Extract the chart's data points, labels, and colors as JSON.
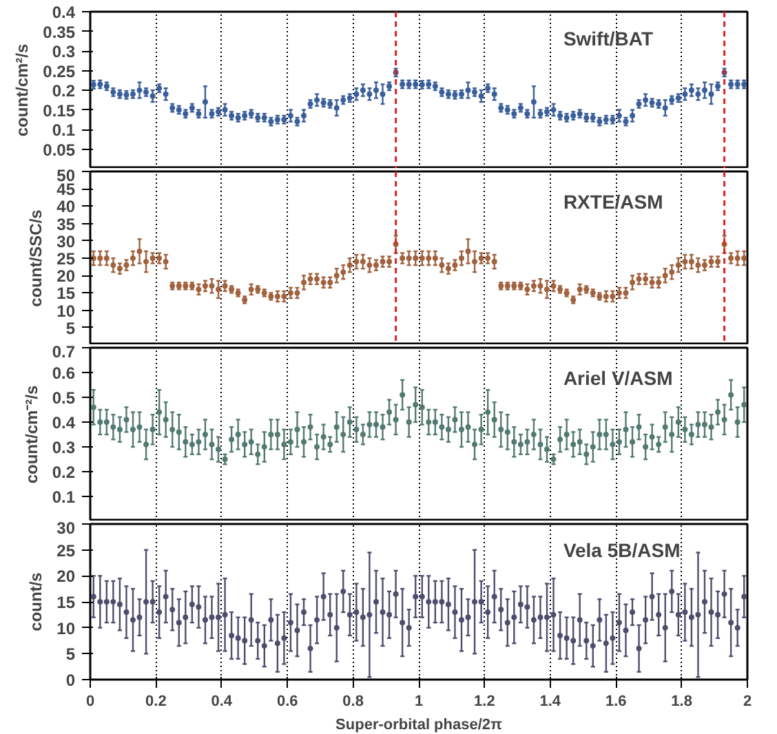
{
  "chart_data": [
    {
      "type": "scatter",
      "title": "Swift/BAT",
      "ylabel": "count/cm²/s",
      "color": "#3a5f9a",
      "marker": "circle",
      "grid": "x",
      "tick_labels": "y",
      "xlim": [
        0,
        2
      ],
      "ylim": [
        0,
        0.4
      ],
      "yticks": [
        0.05,
        0.1,
        0.15,
        0.2,
        0.25,
        0.3,
        0.35,
        0.4
      ],
      "ref_lines": [
        {
          "axis": "x",
          "value": 0.93,
          "color": "#e02020",
          "line_style": "dashed"
        },
        {
          "axis": "x",
          "value": 1.93,
          "color": "#e02020",
          "line_style": "dashed"
        }
      ],
      "x": [
        0.01,
        0.03,
        0.05,
        0.07,
        0.09,
        0.11,
        0.13,
        0.15,
        0.17,
        0.19,
        0.21,
        0.23,
        0.25,
        0.27,
        0.29,
        0.31,
        0.33,
        0.35,
        0.37,
        0.39,
        0.41,
        0.43,
        0.45,
        0.47,
        0.49,
        0.51,
        0.53,
        0.55,
        0.57,
        0.59,
        0.61,
        0.63,
        0.65,
        0.67,
        0.69,
        0.71,
        0.73,
        0.75,
        0.77,
        0.79,
        0.81,
        0.83,
        0.85,
        0.87,
        0.89,
        0.91,
        0.93,
        0.95,
        0.97,
        0.99,
        1.01,
        1.03,
        1.05,
        1.07,
        1.09,
        1.11,
        1.13,
        1.15,
        1.17,
        1.19,
        1.21,
        1.23,
        1.25,
        1.27,
        1.29,
        1.31,
        1.33,
        1.35,
        1.37,
        1.39,
        1.41,
        1.43,
        1.45,
        1.47,
        1.49,
        1.51,
        1.53,
        1.55,
        1.57,
        1.59,
        1.61,
        1.63,
        1.65,
        1.67,
        1.69,
        1.71,
        1.73,
        1.75,
        1.77,
        1.79,
        1.81,
        1.83,
        1.85,
        1.87,
        1.89,
        1.91,
        1.93,
        1.95,
        1.97,
        1.99
      ],
      "values": [
        0.214,
        0.215,
        0.21,
        0.195,
        0.19,
        0.188,
        0.19,
        0.2,
        0.195,
        0.185,
        0.205,
        0.19,
        0.155,
        0.15,
        0.14,
        0.155,
        0.14,
        0.17,
        0.14,
        0.145,
        0.15,
        0.135,
        0.13,
        0.135,
        0.14,
        0.13,
        0.13,
        0.12,
        0.125,
        0.125,
        0.135,
        0.12,
        0.135,
        0.165,
        0.175,
        0.168,
        0.165,
        0.155,
        0.175,
        0.18,
        0.19,
        0.2,
        0.19,
        0.2,
        0.19,
        0.21,
        0.245,
        0.215,
        0.215,
        0.215,
        0.214,
        0.215,
        0.21,
        0.195,
        0.19,
        0.188,
        0.19,
        0.2,
        0.195,
        0.185,
        0.205,
        0.19,
        0.155,
        0.15,
        0.14,
        0.155,
        0.14,
        0.17,
        0.14,
        0.145,
        0.15,
        0.135,
        0.13,
        0.135,
        0.14,
        0.13,
        0.13,
        0.12,
        0.125,
        0.125,
        0.135,
        0.12,
        0.135,
        0.165,
        0.175,
        0.168,
        0.165,
        0.155,
        0.175,
        0.18,
        0.19,
        0.2,
        0.19,
        0.2,
        0.19,
        0.21,
        0.245,
        0.215,
        0.215,
        0.215
      ],
      "errors": [
        0.01,
        0.01,
        0.01,
        0.01,
        0.01,
        0.01,
        0.01,
        0.02,
        0.01,
        0.015,
        0.01,
        0.015,
        0.01,
        0.01,
        0.01,
        0.01,
        0.01,
        0.04,
        0.01,
        0.01,
        0.015,
        0.01,
        0.01,
        0.01,
        0.01,
        0.01,
        0.01,
        0.01,
        0.01,
        0.01,
        0.015,
        0.01,
        0.015,
        0.01,
        0.015,
        0.01,
        0.01,
        0.02,
        0.01,
        0.01,
        0.015,
        0.015,
        0.015,
        0.02,
        0.025,
        0.01,
        0.01,
        0.01,
        0.01,
        0.01,
        0.01,
        0.01,
        0.01,
        0.01,
        0.01,
        0.01,
        0.01,
        0.02,
        0.01,
        0.015,
        0.01,
        0.015,
        0.01,
        0.01,
        0.01,
        0.01,
        0.01,
        0.04,
        0.01,
        0.01,
        0.015,
        0.01,
        0.01,
        0.01,
        0.01,
        0.01,
        0.01,
        0.01,
        0.01,
        0.01,
        0.015,
        0.01,
        0.015,
        0.01,
        0.015,
        0.01,
        0.01,
        0.02,
        0.01,
        0.01,
        0.015,
        0.015,
        0.015,
        0.02,
        0.025,
        0.01,
        0.01,
        0.01,
        0.01,
        0.01
      ]
    },
    {
      "type": "scatter",
      "title": "RXTE/ASM",
      "ylabel": "count/SSC/s",
      "color": "#a0623f",
      "marker": "circle",
      "grid": "x",
      "tick_labels": "y",
      "xlim": [
        0,
        2
      ],
      "ylim": [
        0,
        50
      ],
      "yticks": [
        5,
        10,
        15,
        20,
        25,
        30,
        35,
        40,
        45,
        50
      ],
      "ref_lines": [
        {
          "axis": "x",
          "value": 0.93,
          "color": "#e02020",
          "line_style": "dashed"
        },
        {
          "axis": "x",
          "value": 1.93,
          "color": "#e02020",
          "line_style": "dashed"
        }
      ],
      "x": [
        0.01,
        0.03,
        0.05,
        0.07,
        0.09,
        0.11,
        0.13,
        0.15,
        0.17,
        0.19,
        0.21,
        0.23,
        0.25,
        0.27,
        0.29,
        0.31,
        0.33,
        0.35,
        0.37,
        0.39,
        0.41,
        0.43,
        0.45,
        0.47,
        0.49,
        0.51,
        0.53,
        0.55,
        0.57,
        0.59,
        0.61,
        0.63,
        0.65,
        0.67,
        0.69,
        0.71,
        0.73,
        0.75,
        0.77,
        0.79,
        0.81,
        0.83,
        0.85,
        0.87,
        0.89,
        0.91,
        0.93,
        0.95,
        0.97,
        0.99,
        1.01,
        1.03,
        1.05,
        1.07,
        1.09,
        1.11,
        1.13,
        1.15,
        1.17,
        1.19,
        1.21,
        1.23,
        1.25,
        1.27,
        1.29,
        1.31,
        1.33,
        1.35,
        1.37,
        1.39,
        1.41,
        1.43,
        1.45,
        1.47,
        1.49,
        1.51,
        1.53,
        1.55,
        1.57,
        1.59,
        1.61,
        1.63,
        1.65,
        1.67,
        1.69,
        1.71,
        1.73,
        1.75,
        1.77,
        1.79,
        1.81,
        1.83,
        1.85,
        1.87,
        1.89,
        1.91,
        1.93,
        1.95,
        1.97,
        1.99
      ],
      "values": [
        25,
        25,
        25,
        23,
        22,
        23,
        25,
        27,
        24,
        25,
        25,
        24,
        17,
        17,
        17,
        17,
        16,
        17,
        17,
        16,
        17,
        16,
        15,
        13,
        16,
        16,
        15,
        14,
        14,
        14,
        15,
        15,
        18,
        19,
        19,
        18,
        18,
        20,
        21,
        23,
        24,
        24,
        23,
        23,
        24,
        24,
        29,
        25,
        25,
        25,
        25,
        25,
        25,
        23,
        22,
        23,
        25,
        27,
        24,
        25,
        25,
        24,
        17,
        17,
        17,
        17,
        16,
        17,
        17,
        16,
        17,
        16,
        15,
        13,
        16,
        16,
        15,
        14,
        14,
        14,
        15,
        15,
        18,
        19,
        19,
        18,
        18,
        20,
        21,
        23,
        24,
        24,
        23,
        23,
        24,
        24,
        29,
        25,
        25,
        25
      ],
      "errors": [
        2,
        2,
        2,
        2,
        1.5,
        1.5,
        2,
        3.5,
        3,
        1.5,
        1.5,
        2,
        1,
        1,
        1,
        1,
        1.5,
        1.5,
        2,
        2.5,
        1.5,
        1,
        1,
        1,
        1.5,
        1,
        1,
        1,
        1.5,
        1.5,
        1.5,
        1.5,
        2,
        1.5,
        1.5,
        1.5,
        1.5,
        2,
        2,
        2,
        2,
        2,
        2,
        1.5,
        1.5,
        1.5,
        2.5,
        1.5,
        2,
        2,
        2,
        2,
        2,
        2,
        1.5,
        1.5,
        2,
        3.5,
        3,
        1.5,
        1.5,
        2,
        1,
        1,
        1,
        1,
        1.5,
        1.5,
        2,
        2.5,
        1.5,
        1,
        1,
        1,
        1.5,
        1,
        1,
        1,
        1.5,
        1.5,
        1.5,
        1.5,
        2,
        1.5,
        1.5,
        1.5,
        1.5,
        2,
        2,
        2,
        2,
        2,
        2,
        1.5,
        1.5,
        1.5,
        2.5,
        1.5,
        2,
        2
      ]
    },
    {
      "type": "scatter",
      "title": "Ariel V/ASM",
      "ylabel": "count/cm⁻²/s",
      "color": "#527a70",
      "marker": "circle",
      "grid": "x",
      "tick_labels": "y",
      "xlim": [
        0,
        2
      ],
      "ylim": [
        0,
        0.7
      ],
      "yticks": [
        0.1,
        0.2,
        0.3,
        0.4,
        0.5,
        0.6,
        0.7
      ],
      "x": [
        0.01,
        0.03,
        0.05,
        0.07,
        0.09,
        0.11,
        0.13,
        0.15,
        0.17,
        0.19,
        0.21,
        0.23,
        0.25,
        0.27,
        0.29,
        0.31,
        0.33,
        0.35,
        0.37,
        0.39,
        0.41,
        0.43,
        0.45,
        0.47,
        0.49,
        0.51,
        0.53,
        0.55,
        0.57,
        0.59,
        0.61,
        0.63,
        0.65,
        0.67,
        0.69,
        0.71,
        0.73,
        0.75,
        0.77,
        0.79,
        0.81,
        0.83,
        0.85,
        0.87,
        0.89,
        0.91,
        0.93,
        0.95,
        0.97,
        0.99,
        1.01,
        1.03,
        1.05,
        1.07,
        1.09,
        1.11,
        1.13,
        1.15,
        1.17,
        1.19,
        1.21,
        1.23,
        1.25,
        1.27,
        1.29,
        1.31,
        1.33,
        1.35,
        1.37,
        1.39,
        1.41,
        1.43,
        1.45,
        1.47,
        1.49,
        1.51,
        1.53,
        1.55,
        1.57,
        1.59,
        1.61,
        1.63,
        1.65,
        1.67,
        1.69,
        1.71,
        1.73,
        1.75,
        1.77,
        1.79,
        1.81,
        1.83,
        1.85,
        1.87,
        1.89,
        1.91,
        1.93,
        1.95,
        1.97,
        1.99
      ],
      "values": [
        0.46,
        0.4,
        0.4,
        0.38,
        0.37,
        0.41,
        0.37,
        0.38,
        0.31,
        0.37,
        0.44,
        0.41,
        0.37,
        0.36,
        0.32,
        0.31,
        0.32,
        0.35,
        0.31,
        0.29,
        0.25,
        0.33,
        0.35,
        0.31,
        0.32,
        0.27,
        0.3,
        0.35,
        0.35,
        0.31,
        0.32,
        0.37,
        0.32,
        0.38,
        0.3,
        0.34,
        0.31,
        0.38,
        0.35,
        0.4,
        0.37,
        0.35,
        0.39,
        0.39,
        0.38,
        0.44,
        0.41,
        0.51,
        0.4,
        0.47,
        0.46,
        0.4,
        0.4,
        0.38,
        0.37,
        0.41,
        0.37,
        0.38,
        0.31,
        0.37,
        0.44,
        0.41,
        0.37,
        0.36,
        0.32,
        0.31,
        0.32,
        0.35,
        0.31,
        0.29,
        0.25,
        0.33,
        0.35,
        0.31,
        0.32,
        0.27,
        0.3,
        0.35,
        0.35,
        0.31,
        0.32,
        0.37,
        0.32,
        0.38,
        0.3,
        0.34,
        0.31,
        0.38,
        0.35,
        0.4,
        0.37,
        0.35,
        0.39,
        0.39,
        0.38,
        0.44,
        0.41,
        0.51,
        0.4,
        0.47
      ],
      "errors": [
        0.07,
        0.05,
        0.05,
        0.05,
        0.05,
        0.05,
        0.07,
        0.06,
        0.06,
        0.06,
        0.09,
        0.07,
        0.07,
        0.07,
        0.06,
        0.04,
        0.05,
        0.06,
        0.06,
        0.05,
        0.02,
        0.05,
        0.06,
        0.05,
        0.05,
        0.04,
        0.06,
        0.06,
        0.06,
        0.06,
        0.05,
        0.07,
        0.06,
        0.05,
        0.05,
        0.05,
        0.03,
        0.06,
        0.07,
        0.06,
        0.05,
        0.04,
        0.05,
        0.05,
        0.05,
        0.05,
        0.06,
        0.06,
        0.06,
        0.07,
        0.07,
        0.05,
        0.05,
        0.05,
        0.05,
        0.05,
        0.07,
        0.06,
        0.06,
        0.06,
        0.09,
        0.07,
        0.07,
        0.07,
        0.06,
        0.04,
        0.05,
        0.06,
        0.06,
        0.05,
        0.02,
        0.05,
        0.06,
        0.05,
        0.05,
        0.04,
        0.06,
        0.06,
        0.06,
        0.06,
        0.05,
        0.07,
        0.06,
        0.05,
        0.05,
        0.05,
        0.03,
        0.06,
        0.07,
        0.06,
        0.05,
        0.04,
        0.05,
        0.05,
        0.05,
        0.05,
        0.06,
        0.06,
        0.06,
        0.07
      ]
    },
    {
      "type": "scatter",
      "title": "Vela 5B/ASM",
      "ylabel": "count/s",
      "xlabel": "Super-orbital phase/2π",
      "color": "#4d4d6e",
      "marker": "circle",
      "grid": "x",
      "xlim": [
        0,
        2
      ],
      "ylim": [
        0,
        30
      ],
      "xticks": [
        0,
        0.2,
        0.4,
        0.6,
        0.8,
        1,
        1.2,
        1.4,
        1.6,
        1.8,
        2
      ],
      "yticks": [
        0,
        5,
        10,
        15,
        20,
        25,
        30
      ],
      "x": [
        0.01,
        0.03,
        0.05,
        0.07,
        0.09,
        0.11,
        0.13,
        0.15,
        0.17,
        0.19,
        0.21,
        0.23,
        0.25,
        0.27,
        0.29,
        0.31,
        0.33,
        0.35,
        0.37,
        0.39,
        0.41,
        0.43,
        0.45,
        0.47,
        0.49,
        0.51,
        0.53,
        0.55,
        0.57,
        0.59,
        0.61,
        0.63,
        0.65,
        0.67,
        0.69,
        0.71,
        0.73,
        0.75,
        0.77,
        0.79,
        0.81,
        0.83,
        0.85,
        0.87,
        0.89,
        0.91,
        0.93,
        0.95,
        0.97,
        0.99,
        1.01,
        1.03,
        1.05,
        1.07,
        1.09,
        1.11,
        1.13,
        1.15,
        1.17,
        1.19,
        1.21,
        1.23,
        1.25,
        1.27,
        1.29,
        1.31,
        1.33,
        1.35,
        1.37,
        1.39,
        1.41,
        1.43,
        1.45,
        1.47,
        1.49,
        1.51,
        1.53,
        1.55,
        1.57,
        1.59,
        1.61,
        1.63,
        1.65,
        1.67,
        1.69,
        1.71,
        1.73,
        1.75,
        1.77,
        1.79,
        1.81,
        1.83,
        1.85,
        1.87,
        1.89,
        1.91,
        1.93,
        1.95,
        1.97,
        1.99
      ],
      "values": [
        16,
        15,
        15,
        15,
        14.5,
        13,
        11.5,
        12,
        15,
        15,
        13,
        16,
        13.5,
        11,
        12,
        14.5,
        14,
        11.5,
        12,
        12,
        12.5,
        8.5,
        8,
        7.5,
        11.5,
        7.5,
        6.5,
        11.5,
        7,
        8,
        11,
        9.5,
        13,
        6,
        11.5,
        16,
        12.5,
        10,
        17,
        12.5,
        13,
        12,
        12.5,
        15,
        13,
        12.5,
        16.5,
        11,
        10,
        16,
        16,
        15,
        15,
        15,
        14.5,
        13,
        11.5,
        12,
        15,
        15,
        13,
        16,
        13.5,
        11,
        12,
        14.5,
        14,
        11.5,
        12,
        12,
        12.5,
        8.5,
        8,
        7.5,
        11.5,
        7.5,
        6.5,
        11.5,
        7,
        8,
        11,
        9.5,
        13,
        6,
        11.5,
        16,
        12.5,
        10,
        17,
        12.5,
        13,
        12,
        12.5,
        15,
        13,
        12.5,
        16.5,
        11,
        10,
        16
      ],
      "errors": [
        4,
        5,
        4,
        4,
        5,
        5,
        6,
        3.5,
        10,
        4,
        5,
        5,
        4,
        4.5,
        5,
        3.5,
        4,
        4.5,
        4,
        6.5,
        7,
        4.5,
        4,
        4.5,
        5,
        3.5,
        4,
        4,
        5.5,
        5,
        5.5,
        5,
        2.5,
        4.5,
        4.5,
        4.5,
        4,
        6.5,
        4,
        4,
        5.5,
        5.5,
        12,
        6,
        6.5,
        4.5,
        4.5,
        6.5,
        3.5,
        4,
        4,
        5,
        4,
        4,
        5,
        5,
        6,
        3.5,
        10,
        4,
        5,
        5,
        4,
        4.5,
        5,
        3.5,
        4,
        4.5,
        4,
        6.5,
        7,
        4.5,
        4,
        4.5,
        5,
        3.5,
        4,
        4,
        5.5,
        5,
        5.5,
        5,
        2.5,
        4.5,
        4.5,
        4.5,
        4,
        6.5,
        4,
        4,
        5.5,
        5.5,
        12,
        6,
        6.5,
        4.5,
        4.5,
        6.5,
        3.5,
        4
      ]
    }
  ]
}
